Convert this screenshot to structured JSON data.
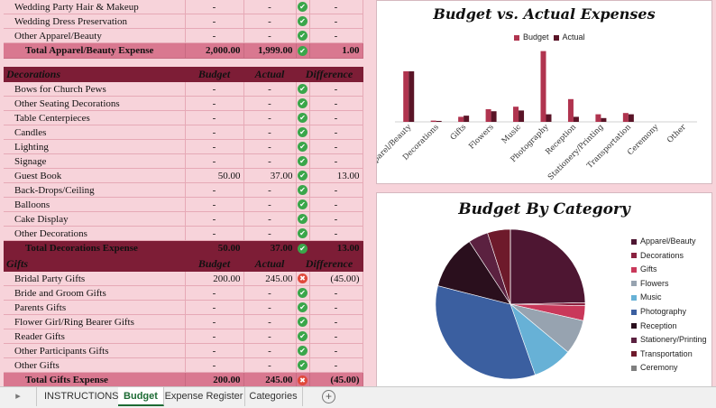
{
  "apparel": {
    "rows": [
      {
        "item": "Wedding Party Hair & Makeup",
        "budget": "-",
        "actual": "-",
        "status": "ok",
        "diff": "-"
      },
      {
        "item": "Wedding Dress Preservation",
        "budget": "-",
        "actual": "-",
        "status": "ok",
        "diff": "-"
      },
      {
        "item": "Other Apparel/Beauty",
        "budget": "-",
        "actual": "-",
        "status": "ok",
        "diff": "-"
      }
    ],
    "total": {
      "label": "Total Apparel/Beauty Expense",
      "budget": "2,000.00",
      "actual": "1,999.00",
      "status": "ok",
      "diff": "1.00"
    }
  },
  "decorations": {
    "header": {
      "name": "Decorations",
      "budget": "Budget",
      "actual": "Actual",
      "diff": "Difference"
    },
    "rows": [
      {
        "item": "Bows for Church Pews",
        "budget": "-",
        "actual": "-",
        "status": "ok",
        "diff": "-"
      },
      {
        "item": "Other Seating Decorations",
        "budget": "-",
        "actual": "-",
        "status": "ok",
        "diff": "-"
      },
      {
        "item": "Table Centerpieces",
        "budget": "-",
        "actual": "-",
        "status": "ok",
        "diff": "-"
      },
      {
        "item": "Candles",
        "budget": "-",
        "actual": "-",
        "status": "ok",
        "diff": "-"
      },
      {
        "item": "Lighting",
        "budget": "-",
        "actual": "-",
        "status": "ok",
        "diff": "-"
      },
      {
        "item": "Signage",
        "budget": "-",
        "actual": "-",
        "status": "ok",
        "diff": "-"
      },
      {
        "item": "Guest Book",
        "budget": "50.00",
        "actual": "37.00",
        "status": "ok",
        "diff": "13.00"
      },
      {
        "item": "Back-Drops/Ceiling",
        "budget": "-",
        "actual": "-",
        "status": "ok",
        "diff": "-"
      },
      {
        "item": "Balloons",
        "budget": "-",
        "actual": "-",
        "status": "ok",
        "diff": "-"
      },
      {
        "item": "Cake Display",
        "budget": "-",
        "actual": "-",
        "status": "ok",
        "diff": "-"
      },
      {
        "item": "Other Decorations",
        "budget": "-",
        "actual": "-",
        "status": "ok",
        "diff": "-"
      }
    ],
    "total": {
      "label": "Total Decorations Expense",
      "budget": "50.00",
      "actual": "37.00",
      "status": "ok",
      "diff": "13.00"
    }
  },
  "gifts": {
    "header": {
      "name": "Gifts",
      "budget": "Budget",
      "actual": "Actual",
      "diff": "Difference"
    },
    "rows": [
      {
        "item": "Bridal Party Gifts",
        "budget": "200.00",
        "actual": "245.00",
        "status": "bad",
        "diff": "(45.00)"
      },
      {
        "item": "Bride and Groom Gifts",
        "budget": "-",
        "actual": "-",
        "status": "ok",
        "diff": "-"
      },
      {
        "item": "Parents Gifts",
        "budget": "-",
        "actual": "-",
        "status": "ok",
        "diff": "-"
      },
      {
        "item": "Flower Girl/Ring Bearer Gifts",
        "budget": "-",
        "actual": "-",
        "status": "ok",
        "diff": "-"
      },
      {
        "item": "Reader Gifts",
        "budget": "-",
        "actual": "-",
        "status": "ok",
        "diff": "-"
      },
      {
        "item": "Other Participants Gifts",
        "budget": "-",
        "actual": "-",
        "status": "ok",
        "diff": "-"
      },
      {
        "item": "Other Gifts",
        "budget": "-",
        "actual": "-",
        "status": "ok",
        "diff": "-"
      }
    ],
    "total": {
      "label": "Total Gifts Expense",
      "budget": "200.00",
      "actual": "245.00",
      "status": "bad",
      "diff": "(45.00)"
    }
  },
  "chart_data": [
    {
      "type": "bar",
      "title": "Budget vs. Actual Expenses",
      "categories": [
        "Apparel/Beauty",
        "Decorations",
        "Gifts",
        "Flowers",
        "Music",
        "Photography",
        "Reception",
        "Stationery/Printing",
        "Transportation",
        "Ceremony",
        "Other"
      ],
      "series": [
        {
          "name": "Budget",
          "values": [
            2000,
            50,
            200,
            500,
            600,
            2800,
            900,
            300,
            350,
            0,
            0
          ]
        },
        {
          "name": "Actual",
          "values": [
            1999,
            37,
            245,
            420,
            450,
            300,
            200,
            150,
            300,
            0,
            0
          ]
        }
      ],
      "legend": "top",
      "colors": [
        "#b0344f",
        "#5a1427"
      ]
    },
    {
      "type": "pie",
      "title": "Budget By Category",
      "legend": "right",
      "slices": [
        {
          "label": "Apparel/Beauty",
          "value": 23,
          "color": "#4e1632"
        },
        {
          "label": "Decorations",
          "value": 0.6,
          "color": "#8a2140"
        },
        {
          "label": "Gifts",
          "value": 3,
          "color": "#c9385a"
        },
        {
          "label": "Flowers",
          "value": 7,
          "color": "#97a3b0"
        },
        {
          "label": "Music",
          "value": 8,
          "color": "#67b1d6"
        },
        {
          "label": "Photography",
          "value": 32,
          "color": "#3b5fa0"
        },
        {
          "label": "Reception",
          "value": 11,
          "color": "#2a0f1d"
        },
        {
          "label": "Stationery/Printing",
          "value": 4,
          "color": "#5b2140"
        },
        {
          "label": "Transportation",
          "value": 4.6,
          "color": "#6e1a2b"
        },
        {
          "label": "Ceremony",
          "value": 0.01,
          "color": "#7f7f7f"
        }
      ]
    }
  ],
  "sheet_tabs": [
    "INSTRUCTIONS",
    "Budget",
    "Expense Register",
    "Categories"
  ],
  "active_tab": "Budget",
  "colors": {
    "accent": "#7d1d36",
    "total_row": "#d97890",
    "background": "#f7d3da"
  }
}
